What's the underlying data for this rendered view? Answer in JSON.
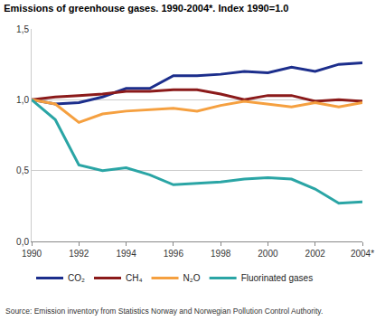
{
  "chart_data": {
    "type": "line",
    "title": "Emissions of greenhouse gases. 1990-2004*. Index 1990=1.0",
    "source": "Source: Emission inventory from Statistics Norway and Norwegian Pollution Control Authority.",
    "x": [
      1990,
      1991,
      1992,
      1993,
      1994,
      1995,
      1996,
      1997,
      1998,
      1999,
      2000,
      2001,
      2002,
      2003,
      2004
    ],
    "series": [
      {
        "name": "CO₂",
        "color": "#1c2e8c",
        "values": [
          1.0,
          0.97,
          0.98,
          1.02,
          1.08,
          1.08,
          1.17,
          1.17,
          1.18,
          1.2,
          1.19,
          1.23,
          1.2,
          1.25,
          1.26
        ]
      },
      {
        "name": "CH₄",
        "color": "#8b1a1a",
        "values": [
          1.0,
          1.02,
          1.03,
          1.04,
          1.06,
          1.06,
          1.07,
          1.07,
          1.04,
          1.0,
          1.03,
          1.03,
          0.99,
          1.0,
          0.99
        ]
      },
      {
        "name": "N₂O",
        "color": "#f5a040",
        "values": [
          1.0,
          0.97,
          0.84,
          0.9,
          0.92,
          0.93,
          0.94,
          0.92,
          0.96,
          0.99,
          0.97,
          0.95,
          0.98,
          0.95,
          0.98
        ]
      },
      {
        "name": "Fluorinated gases",
        "color": "#2aa5a5",
        "values": [
          1.0,
          0.86,
          0.54,
          0.5,
          0.52,
          0.47,
          0.4,
          0.41,
          0.42,
          0.44,
          0.45,
          0.44,
          0.37,
          0.27,
          0.28
        ]
      }
    ],
    "xlim": [
      1990,
      2004
    ],
    "xticks": [
      1990,
      1992,
      1994,
      1996,
      1998,
      2000,
      2002,
      {
        "value": 2004,
        "label": "2004*"
      }
    ],
    "ylim": [
      0,
      1.5
    ],
    "yticks": [
      {
        "value": 0,
        "label": "0,0"
      },
      {
        "value": 0.5,
        "label": "0,5"
      },
      {
        "value": 1.0,
        "label": "1,0"
      },
      {
        "value": 1.5,
        "label": "1,5"
      }
    ],
    "grid": true,
    "legend": "bottom"
  }
}
